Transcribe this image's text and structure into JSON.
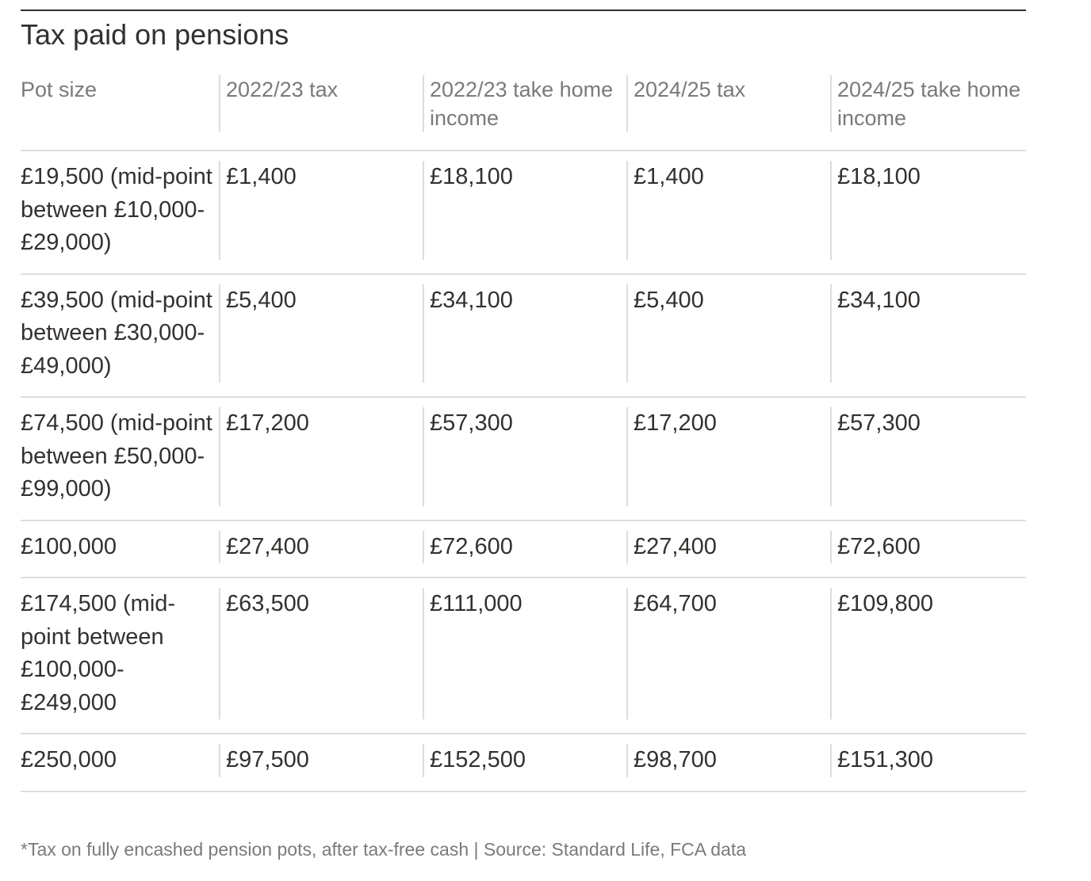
{
  "title": "Tax paid on pensions",
  "table": {
    "columns": [
      "Pot size",
      "2022/23 tax",
      "2022/23 take home income",
      "2024/25 tax",
      "2024/25 take home income"
    ],
    "rows": [
      [
        "£19,500 (mid-point between £10,000-£29,000)",
        "£1,400",
        "£18,100",
        "£1,400",
        "£18,100"
      ],
      [
        "£39,500 (mid-point between £30,000-£49,000)",
        "£5,400",
        "£34,100",
        "£5,400",
        "£34,100"
      ],
      [
        "£74,500 (mid-point between £50,000-£99,000)",
        "£17,200",
        "£57,300",
        "£17,200",
        "£57,300"
      ],
      [
        "£100,000",
        "£27,400",
        "£72,600",
        "£27,400",
        "£72,600"
      ],
      [
        "£174,500 (mid-point between £100,000-£249,000",
        "£63,500",
        "£111,000",
        "£64,700",
        "£109,800"
      ],
      [
        "£250,000",
        "£97,500",
        "£152,500",
        "£98,700",
        "£151,300"
      ]
    ]
  },
  "footnote": "*Tax on fully encashed pension pots, after tax-free cash | Source: Standard Life, FCA data"
}
